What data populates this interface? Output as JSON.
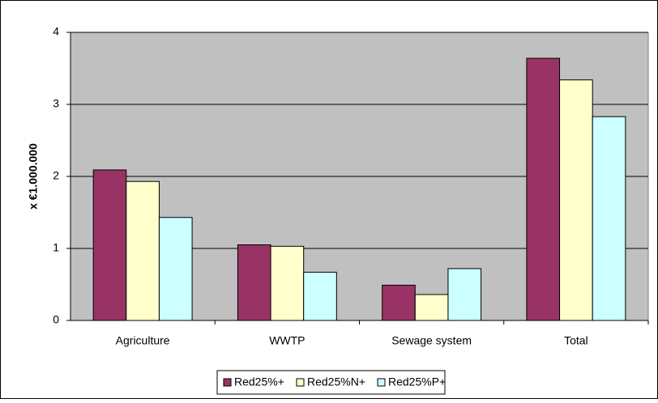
{
  "chart_data": {
    "type": "bar",
    "y_label": "x €1.000.000",
    "categories": [
      "Agriculture",
      "WWTP",
      "Sewage system",
      "Total"
    ],
    "series": [
      {
        "name": "Red25%+",
        "color": "#993366",
        "values": [
          2.09,
          1.05,
          0.49,
          3.64
        ]
      },
      {
        "name": "Red25%N+",
        "color": "#ffffcc",
        "values": [
          1.93,
          1.03,
          0.36,
          3.34
        ]
      },
      {
        "name": "Red25%P+",
        "color": "#ccffff",
        "values": [
          1.43,
          0.67,
          0.72,
          2.83
        ]
      }
    ],
    "ylim": [
      0,
      4
    ],
    "yticks": [
      0,
      1,
      2,
      3,
      4
    ],
    "grid": true,
    "legend": "bottom"
  }
}
